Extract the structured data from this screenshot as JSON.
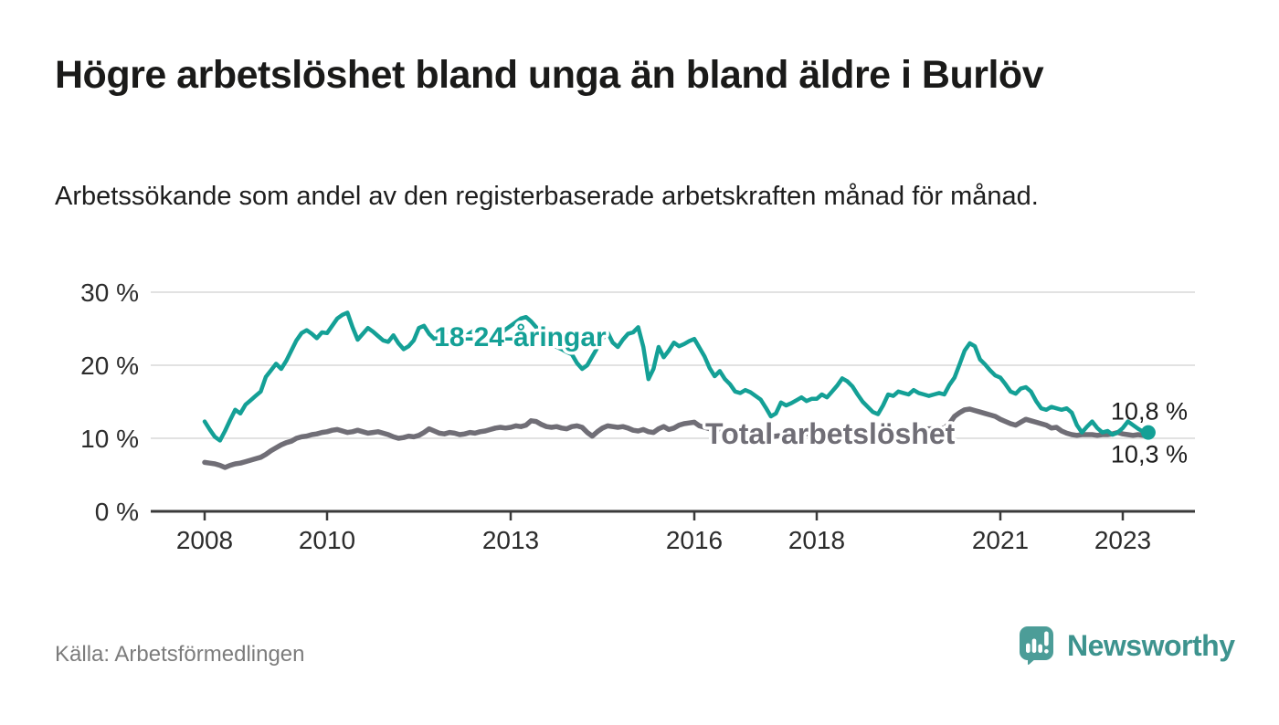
{
  "header": {
    "title": "Högre arbetslöshet bland unga än bland äldre i Burlöv",
    "subtitle": "Arbetssökande som andel av den registerbaserade arbetskraften månad för månad."
  },
  "footer": {
    "source": "Källa: Arbetsförmedlingen",
    "brand": "Newsworthy",
    "logo_icon": "speech-bubble-bar-chart-icon"
  },
  "colors": {
    "youth_line": "#14a096",
    "total_line": "#706e76",
    "grid": "#d8d8d8",
    "axis": "#3a3a3a",
    "tick_text": "#2c2c2c",
    "end_label_text": "#1c1c1c",
    "title_text": "#1a1a19",
    "source_text": "#7c7c7c",
    "brand_teal": "#3d938e",
    "logo_bubble": "#4c9d98"
  },
  "chart_data": {
    "type": "line",
    "title": "Högre arbetslöshet bland unga än bland äldre i Burlöv",
    "subtitle": "Arbetssökande som andel av den registerbaserade arbetskraften månad för månad.",
    "unit": "%",
    "grid": "horizontal",
    "legend_position": "inline-labels",
    "ylim": [
      0,
      32
    ],
    "x_start_year": 2008,
    "x_step_months": 1,
    "x_end_label_year": "2023 (maj)",
    "yticks": [
      {
        "value": 0,
        "label": "0 %"
      },
      {
        "value": 10,
        "label": "10 %"
      },
      {
        "value": 20,
        "label": "20 %"
      },
      {
        "value": 30,
        "label": "30 %"
      }
    ],
    "xticks": [
      {
        "value": 2008,
        "label": "2008"
      },
      {
        "value": 2010,
        "label": "2010"
      },
      {
        "value": 2013,
        "label": "2013"
      },
      {
        "value": 2016,
        "label": "2016"
      },
      {
        "value": 2018,
        "label": "2018"
      },
      {
        "value": 2021,
        "label": "2021"
      },
      {
        "value": 2023,
        "label": "2023"
      }
    ],
    "series": [
      {
        "key": "youth",
        "name": "18-24-åringar",
        "color": "#14a096",
        "stroke_width": 4.5,
        "end_dot": true,
        "end_label": "10,8 %",
        "end_label_position": "above",
        "label_pos": {
          "t": 2011.75,
          "v": 22.6
        },
        "values": [
          12.3,
          11.2,
          10.2,
          9.7,
          11.0,
          12.5,
          13.9,
          13.4,
          14.6,
          15.2,
          15.8,
          16.4,
          18.4,
          19.3,
          20.2,
          19.5,
          20.6,
          22.0,
          23.4,
          24.4,
          24.8,
          24.3,
          23.7,
          24.5,
          24.4,
          25.4,
          26.4,
          26.9,
          27.2,
          25.2,
          23.5,
          24.3,
          25.1,
          24.6,
          24.0,
          23.4,
          23.2,
          24.1,
          23.0,
          22.2,
          22.6,
          23.4,
          25.1,
          25.4,
          24.3,
          23.6,
          23.9,
          24.4,
          24.6,
          24.0,
          23.4,
          23.8,
          24.4,
          24.8,
          25.3,
          24.7,
          24.2,
          23.8,
          24.3,
          24.9,
          25.4,
          25.9,
          26.4,
          26.6,
          26.0,
          25.2,
          24.4,
          23.6,
          23.0,
          22.5,
          22.2,
          21.8,
          21.5,
          20.3,
          19.5,
          20.0,
          21.2,
          22.4,
          23.6,
          24.5,
          23.1,
          22.5,
          23.5,
          24.3,
          24.5,
          25.2,
          22.5,
          18.1,
          19.5,
          22.5,
          21.1,
          22.0,
          23.1,
          22.6,
          22.9,
          23.3,
          23.6,
          22.4,
          21.2,
          19.6,
          18.5,
          19.2,
          18.1,
          17.4,
          16.4,
          16.2,
          16.6,
          16.3,
          15.8,
          15.3,
          14.2,
          13.0,
          13.4,
          14.9,
          14.5,
          14.8,
          15.2,
          15.6,
          15.1,
          15.4,
          15.4,
          16.0,
          15.6,
          16.4,
          17.2,
          18.2,
          17.8,
          17.1,
          16.0,
          15.0,
          14.3,
          13.6,
          13.3,
          14.5,
          16.0,
          15.8,
          16.4,
          16.2,
          16.0,
          16.6,
          16.2,
          16.0,
          15.8,
          16.0,
          16.2,
          16.0,
          17.3,
          18.3,
          20.1,
          22.0,
          23.0,
          22.6,
          20.8,
          20.1,
          19.3,
          18.6,
          18.3,
          17.4,
          16.4,
          16.1,
          16.8,
          17.0,
          16.4,
          15.1,
          14.1,
          13.9,
          14.3,
          14.1,
          13.9,
          14.1,
          13.5,
          11.8,
          10.8,
          11.6,
          12.3,
          11.4,
          10.8,
          11.0,
          10.5,
          10.8,
          11.4,
          12.3,
          11.8,
          11.3,
          10.9,
          10.8
        ]
      },
      {
        "key": "total",
        "name": "Total arbetslöshet",
        "color": "#706e76",
        "stroke_width": 5.5,
        "end_dot": false,
        "end_label": "10,3 %",
        "end_label_position": "below",
        "label_pos": {
          "t": 2016.18,
          "v": 9.25
        },
        "values": [
          6.7,
          6.6,
          6.5,
          6.3,
          6.0,
          6.3,
          6.5,
          6.6,
          6.8,
          7.0,
          7.2,
          7.4,
          7.8,
          8.3,
          8.7,
          9.1,
          9.4,
          9.6,
          10.0,
          10.2,
          10.3,
          10.5,
          10.6,
          10.8,
          10.9,
          11.1,
          11.2,
          11.0,
          10.8,
          10.9,
          11.1,
          10.9,
          10.7,
          10.8,
          10.9,
          10.7,
          10.5,
          10.2,
          10.0,
          10.1,
          10.3,
          10.2,
          10.4,
          10.8,
          11.3,
          11.0,
          10.7,
          10.6,
          10.8,
          10.7,
          10.5,
          10.6,
          10.8,
          10.7,
          10.9,
          11.0,
          11.2,
          11.4,
          11.5,
          11.4,
          11.5,
          11.7,
          11.6,
          11.8,
          12.4,
          12.3,
          11.9,
          11.6,
          11.5,
          11.6,
          11.4,
          11.3,
          11.6,
          11.7,
          11.5,
          10.8,
          10.3,
          10.9,
          11.4,
          11.7,
          11.6,
          11.5,
          11.6,
          11.4,
          11.1,
          11.0,
          11.2,
          10.9,
          10.8,
          11.3,
          11.6,
          11.2,
          11.4,
          11.8,
          12.0,
          12.1,
          12.2,
          11.7,
          11.5,
          11.3,
          11.2,
          11.0,
          10.9,
          10.8,
          10.7,
          10.6,
          10.5,
          10.4,
          10.4,
          10.3,
          10.3,
          10.2,
          10.3,
          10.4,
          10.3,
          10.4,
          10.5,
          10.6,
          10.6,
          10.7,
          10.7,
          10.8,
          10.7,
          10.8,
          10.8,
          10.9,
          10.8,
          10.8,
          10.7,
          10.7,
          10.7,
          10.8,
          10.8,
          10.9,
          10.9,
          11.0,
          11.0,
          11.1,
          11.1,
          11.1,
          11.2,
          11.2,
          11.3,
          11.3,
          11.4,
          11.4,
          12.0,
          13.0,
          13.5,
          13.9,
          14.0,
          13.8,
          13.6,
          13.4,
          13.2,
          13.0,
          12.6,
          12.3,
          12.0,
          11.8,
          12.2,
          12.6,
          12.4,
          12.2,
          12.0,
          11.8,
          11.4,
          11.5,
          11.0,
          10.7,
          10.5,
          10.4,
          10.5,
          10.5,
          10.5,
          10.4,
          10.5,
          10.5,
          10.6,
          10.8,
          10.6,
          10.5,
          10.4,
          10.5,
          10.4,
          10.3
        ]
      }
    ]
  }
}
